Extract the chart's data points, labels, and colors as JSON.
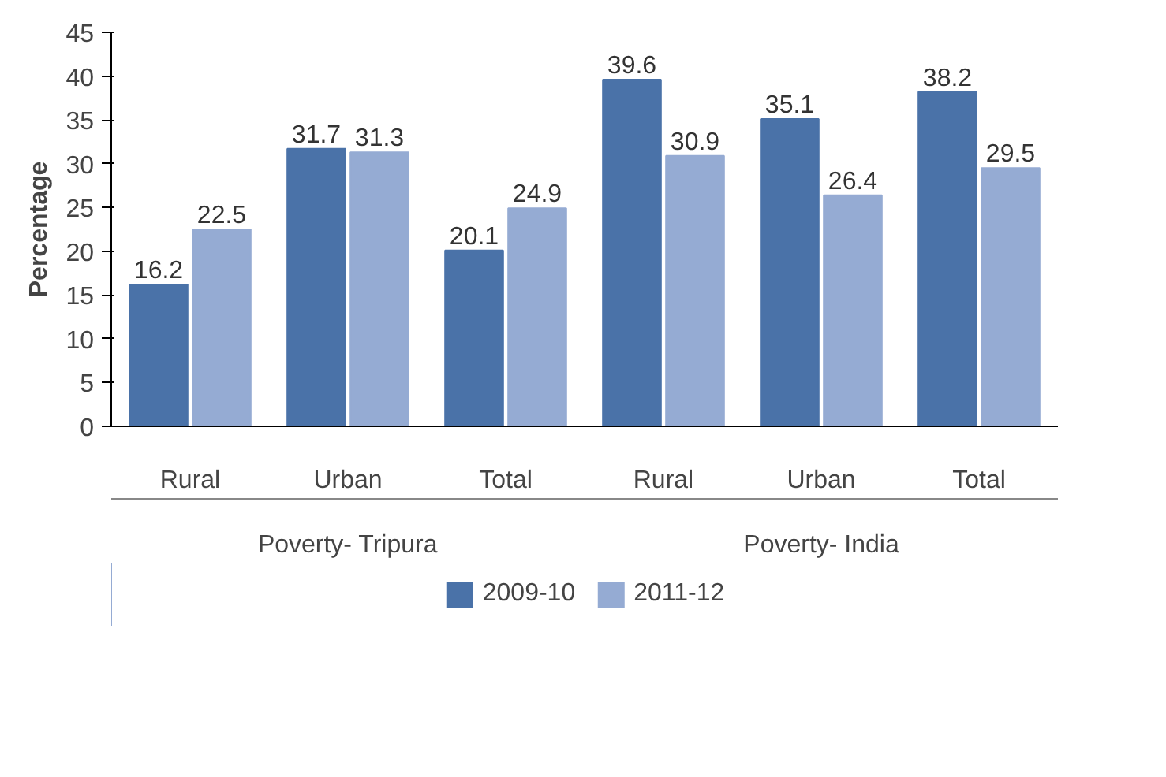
{
  "chart_data": {
    "type": "bar",
    "ylabel": "Percentage",
    "categories": [
      "Rural",
      "Urban",
      "Total",
      "Rural",
      "Urban",
      "Total"
    ],
    "series": [
      {
        "name": "2009-10",
        "color": "#4a72a8",
        "values": [
          16.2,
          31.7,
          20.1,
          39.6,
          35.1,
          38.2
        ]
      },
      {
        "name": "2011-12",
        "color": "#95abd3",
        "values": [
          22.5,
          31.3,
          24.9,
          30.9,
          26.4,
          29.5
        ]
      }
    ],
    "annotations": [
      "Poverty- Tripura",
      "Poverty- India"
    ],
    "ylim": [
      0,
      45
    ],
    "yticks": [
      0,
      5,
      10,
      15,
      20,
      25,
      30,
      35,
      40,
      45
    ],
    "data_labels": true,
    "grid": false,
    "legend": "bottom"
  }
}
